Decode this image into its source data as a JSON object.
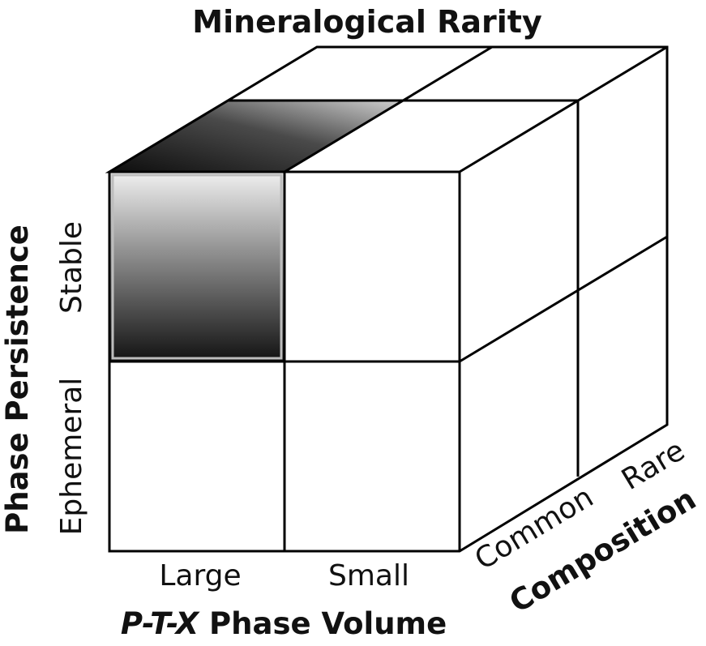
{
  "title": "Mineralogical Rarity",
  "axes": {
    "x": {
      "label_italic": "P-T-X",
      "label_rest": " Phase Volume",
      "ticks": [
        "Large",
        "Small"
      ]
    },
    "y": {
      "label": "Phase Persistence",
      "ticks": [
        "Stable",
        "Ephemeral"
      ]
    },
    "z": {
      "label": "Composition",
      "ticks": [
        "Common",
        "Rare"
      ]
    }
  },
  "highlighted_cell": "Large / Stable / Common",
  "colors": {
    "edge": "#000000",
    "highlight_dark": "#111111",
    "highlight_light": "#f2f2f2",
    "background": "#ffffff"
  }
}
